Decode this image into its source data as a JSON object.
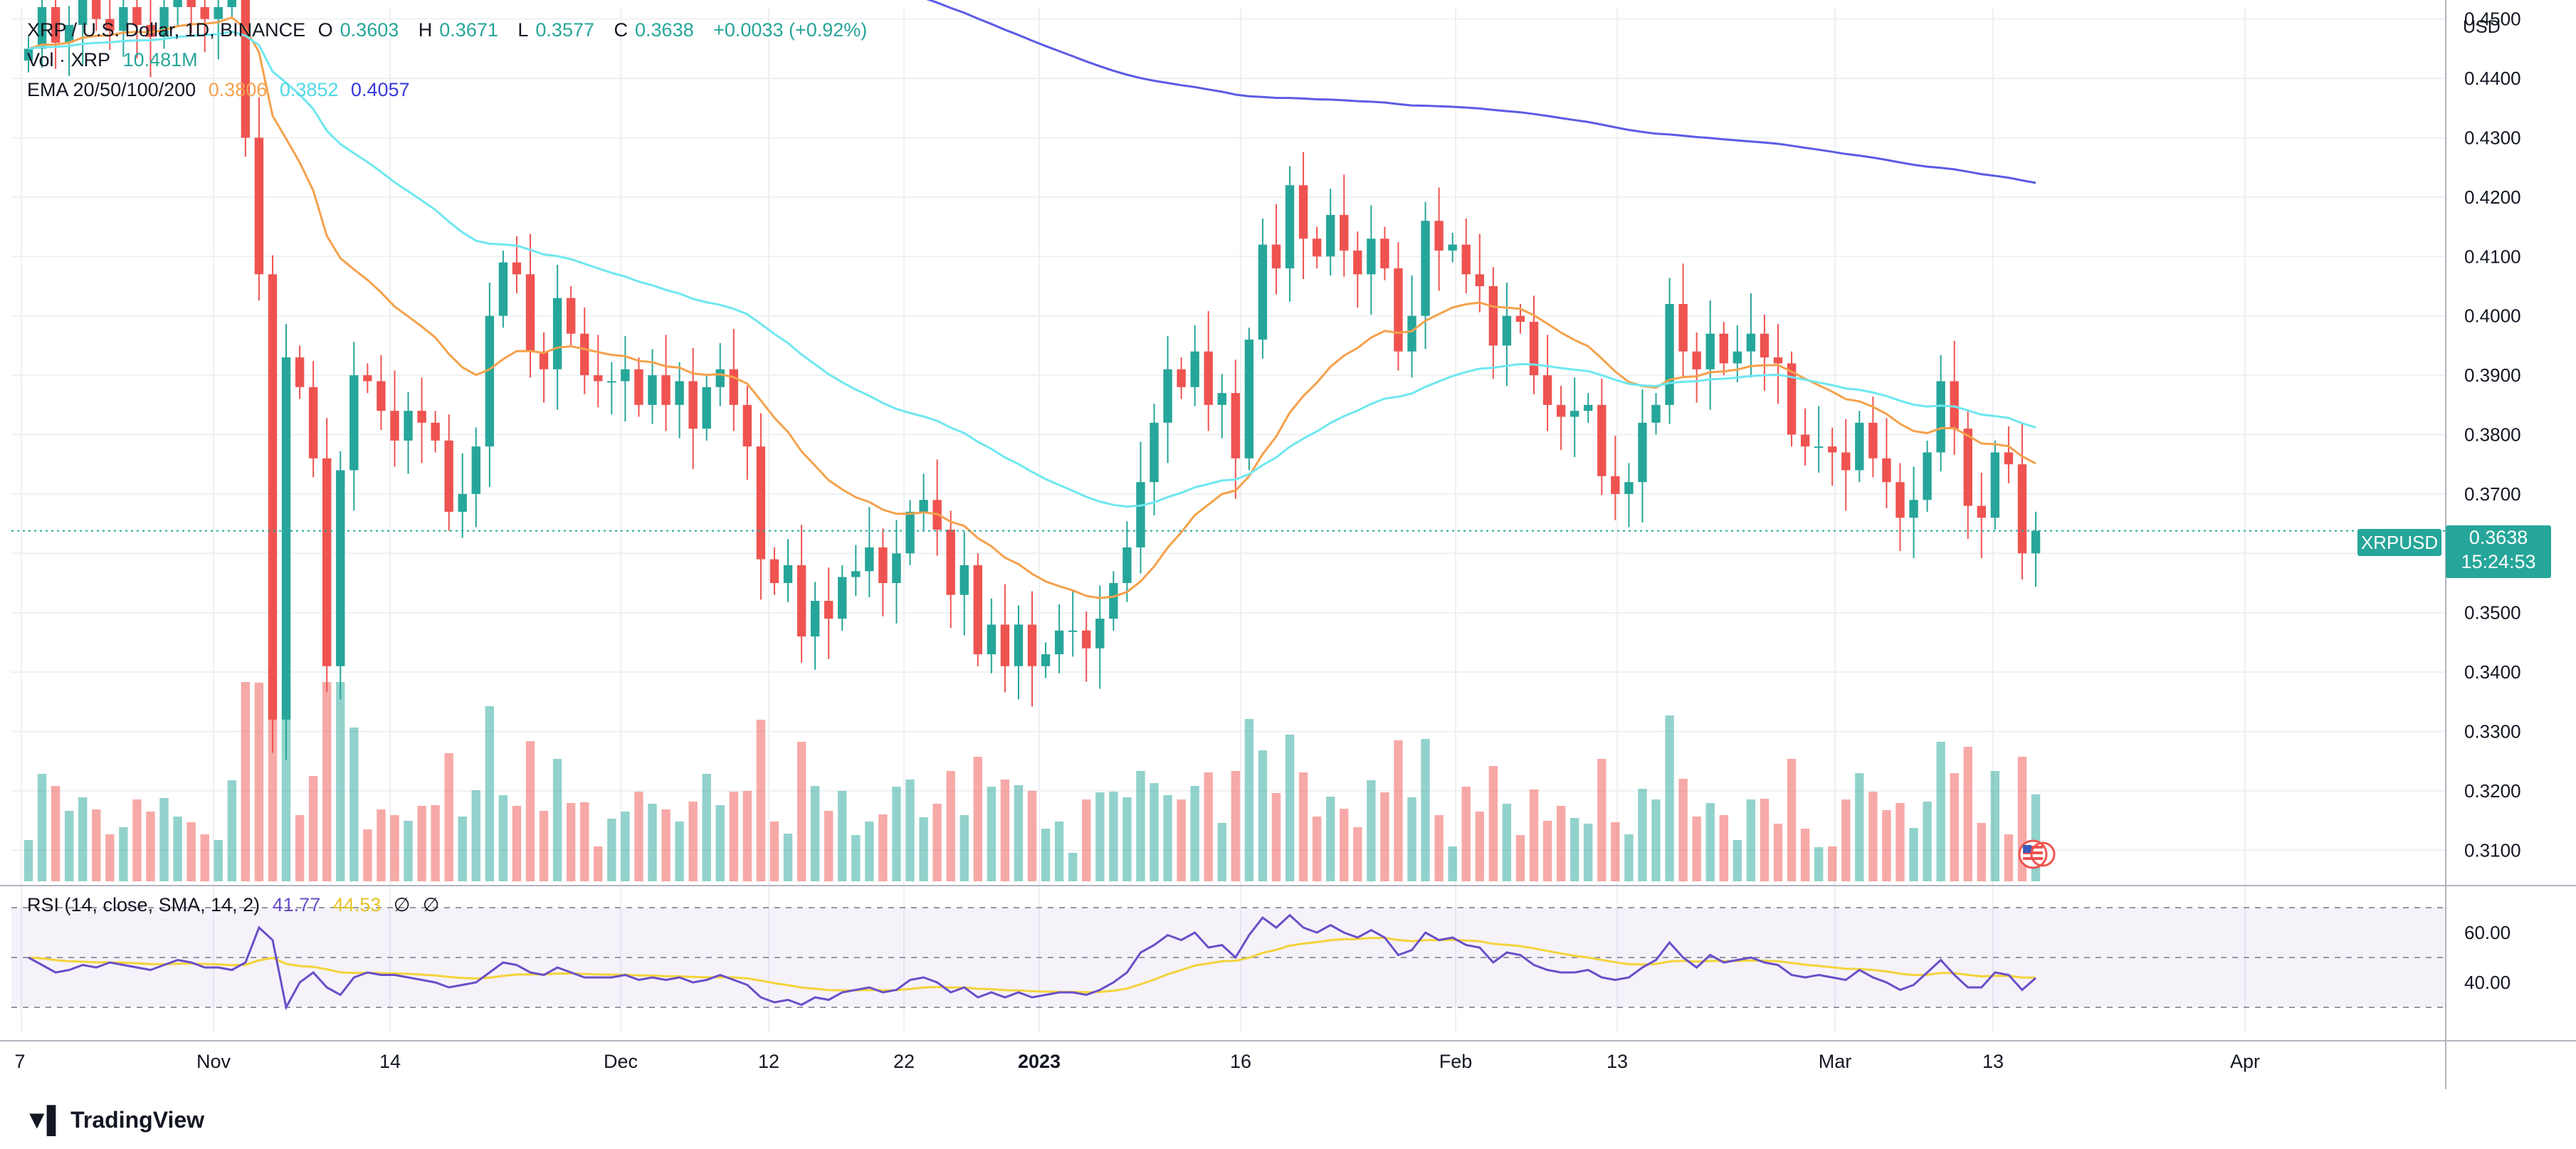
{
  "header": {
    "symbol": "XRP / U.S. Dollar, 1D, BINANCE",
    "open_label": "O",
    "open": "0.3603",
    "high_label": "H",
    "high": "0.3671",
    "low_label": "L",
    "low": "0.3577",
    "close_label": "C",
    "close": "0.3638",
    "change": "+0.0033 (+0.92%)",
    "vol_label": "Vol · XRP",
    "vol_value": "10.481M",
    "ema_label": "EMA 20/50/100/200",
    "ema20": "0.3806",
    "ema50": "0.3852",
    "ema200": "0.4057",
    "rsi_label": "RSI (14, close, SMA, 14, 2)",
    "rsi_value": "41.77",
    "rsi_sma": "44.53",
    "rsi_extra1": "∅",
    "rsi_extra2": "∅"
  },
  "axis": {
    "currency": "USD",
    "price_ticks": [
      "0.4500",
      "0.4400",
      "0.4300",
      "0.4200",
      "0.4100",
      "0.4000",
      "0.3900",
      "0.3800",
      "0.3700",
      "0.3600",
      "0.3500",
      "0.3400",
      "0.3300",
      "0.3200",
      "0.3100"
    ],
    "rsi_ticks": [
      "60.00",
      "40.00"
    ],
    "date_labels": [
      "7",
      "Nov",
      "14",
      "Dec",
      "12",
      "22",
      "2023",
      "16",
      "Feb",
      "13",
      "Mar",
      "13",
      "Apr"
    ]
  },
  "price_tag": {
    "symbol": "XRPUSD",
    "price": "0.3638",
    "countdown": "15:24:53"
  },
  "footer": {
    "brand": "TradingView"
  },
  "colors": {
    "up": "#26a69a",
    "down": "#ef5350",
    "ema20": "#f5a14c",
    "ema50": "#6ee7f0",
    "ema200": "#5b5be6",
    "rsi": "#6a4fc8",
    "rsi_sma": "#f3d43a"
  },
  "chart_data": {
    "type": "candlestick",
    "title": "XRP / U.S. Dollar, 1D, BINANCE",
    "ylabel": "USD",
    "ylim": [
      0.305,
      0.452
    ],
    "candles_close": [
      0.445,
      0.452,
      0.446,
      0.449,
      0.455,
      0.45,
      0.448,
      0.452,
      0.449,
      0.447,
      0.452,
      0.455,
      0.452,
      0.45,
      0.452,
      0.458,
      0.43,
      0.407,
      0.332,
      0.393,
      0.388,
      0.376,
      0.341,
      0.374,
      0.39,
      0.389,
      0.384,
      0.379,
      0.384,
      0.382,
      0.379,
      0.367,
      0.37,
      0.378,
      0.4,
      0.409,
      0.407,
      0.394,
      0.391,
      0.403,
      0.397,
      0.39,
      0.389,
      0.389,
      0.391,
      0.385,
      0.39,
      0.385,
      0.389,
      0.381,
      0.388,
      0.391,
      0.385,
      0.378,
      0.359,
      0.355,
      0.358,
      0.346,
      0.352,
      0.349,
      0.356,
      0.357,
      0.361,
      0.355,
      0.36,
      0.367,
      0.369,
      0.364,
      0.353,
      0.358,
      0.343,
      0.348,
      0.341,
      0.348,
      0.341,
      0.343,
      0.347,
      0.347,
      0.344,
      0.349,
      0.355,
      0.361,
      0.372,
      0.382,
      0.391,
      0.388,
      0.394,
      0.385,
      0.387,
      0.376,
      0.396,
      0.412,
      0.408,
      0.422,
      0.413,
      0.41,
      0.417,
      0.411,
      0.407,
      0.413,
      0.408,
      0.394,
      0.4,
      0.416,
      0.411,
      0.412,
      0.407,
      0.405,
      0.395,
      0.4,
      0.399,
      0.39,
      0.385,
      0.383,
      0.384,
      0.385,
      0.373,
      0.37,
      0.372,
      0.382,
      0.385,
      0.402,
      0.394,
      0.391,
      0.397,
      0.392,
      0.394,
      0.397,
      0.393,
      0.392,
      0.38,
      0.378,
      0.378,
      0.377,
      0.374,
      0.382,
      0.376,
      0.372,
      0.366,
      0.369,
      0.377,
      0.389,
      0.381,
      0.368,
      0.366,
      0.377,
      0.375,
      0.36,
      0.3638
    ],
    "rsi_values": [
      50,
      47,
      44,
      45,
      47,
      46,
      48,
      47,
      46,
      45,
      47,
      49,
      48,
      46,
      46,
      45,
      48,
      62,
      57,
      30,
      40,
      44,
      38,
      35,
      42,
      44,
      43,
      43,
      42,
      41,
      40,
      38,
      39,
      40,
      44,
      48,
      47,
      44,
      43,
      46,
      44,
      42,
      42,
      42,
      43,
      41,
      42,
      41,
      42,
      40,
      41,
      43,
      41,
      39,
      34,
      32,
      33,
      31,
      34,
      33,
      36,
      37,
      38,
      36,
      37,
      41,
      42,
      40,
      36,
      38,
      34,
      36,
      34,
      36,
      34,
      35,
      36,
      36,
      35,
      37,
      40,
      44,
      52,
      55,
      59,
      57,
      60,
      54,
      55,
      50,
      59,
      66,
      62,
      67,
      62,
      60,
      63,
      60,
      58,
      61,
      58,
      51,
      53,
      60,
      57,
      58,
      55,
      54,
      48,
      52,
      51,
      47,
      45,
      44,
      44,
      45,
      42,
      41,
      42,
      46,
      49,
      56,
      50,
      46,
      51,
      48,
      49,
      50,
      48,
      47,
      43,
      42,
      43,
      42,
      41,
      45,
      42,
      40,
      37,
      39,
      44,
      49,
      43,
      38,
      38,
      44,
      43,
      37,
      41.77
    ],
    "rsi_ylim": [
      20,
      72
    ]
  }
}
